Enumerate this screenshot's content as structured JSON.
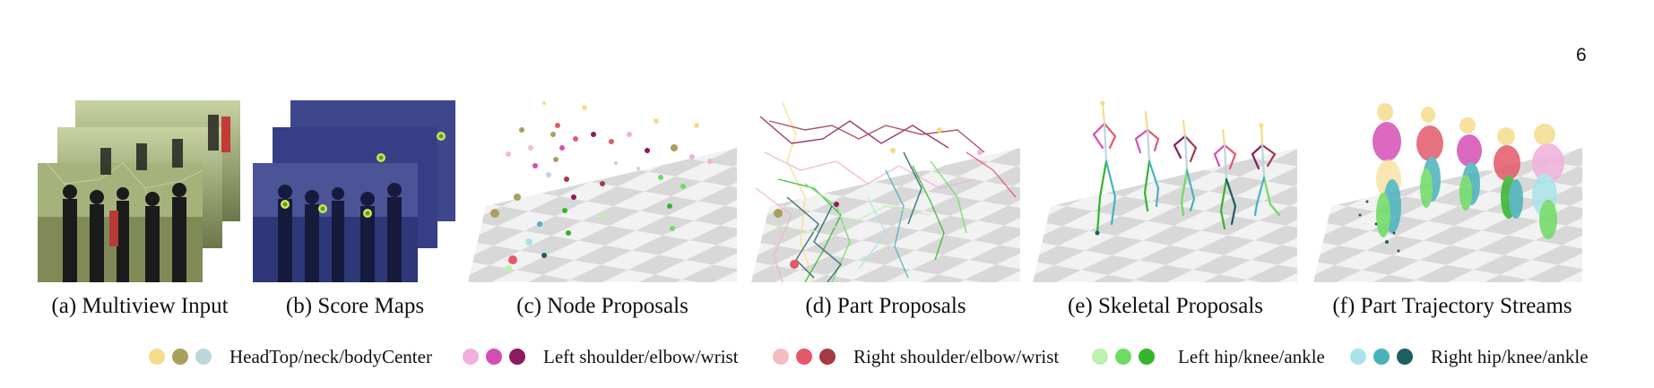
{
  "page_number": "6",
  "panels": [
    {
      "caption": "(a) Multiview Input"
    },
    {
      "caption": "(b) Score Maps"
    },
    {
      "caption": "(c) Node Proposals"
    },
    {
      "caption": "(d) Part Proposals"
    },
    {
      "caption": "(e) Skeletal Proposals"
    },
    {
      "caption": "(f) Part Trajectory Streams"
    }
  ],
  "legend": [
    {
      "label": "HeadTop/neck/bodyCenter",
      "colors": [
        "#f5dc8c",
        "#a9a05c",
        "#bcd6de"
      ]
    },
    {
      "label": "Left shoulder/elbow/wrist",
      "colors": [
        "#efb1db",
        "#d44fb4",
        "#8c1a5e"
      ]
    },
    {
      "label": "Right shoulder/elbow/wrist",
      "colors": [
        "#f3bcc3",
        "#e4596a",
        "#a43a46"
      ]
    },
    {
      "label": "Left hip/knee/ankle",
      "colors": [
        "#bdf0b1",
        "#6ddc63",
        "#34b52a"
      ]
    },
    {
      "label": "Right hip/knee/ankle",
      "colors": [
        "#a9e3e9",
        "#48b2bc",
        "#1e5e62"
      ]
    }
  ]
}
